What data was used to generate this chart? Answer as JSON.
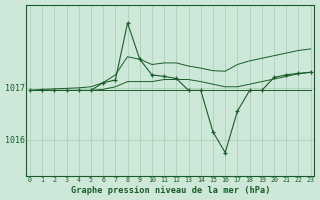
{
  "title": "Graphe pression niveau de la mer (hPa)",
  "background_color": "#cde8d8",
  "plot_bg_color": "#cde8d8",
  "line_color": "#1a5c28",
  "grid_color": "#aaccb8",
  "x_ticks": [
    0,
    1,
    2,
    3,
    4,
    5,
    6,
    7,
    8,
    9,
    10,
    11,
    12,
    13,
    14,
    15,
    16,
    17,
    18,
    19,
    20,
    21,
    22,
    23
  ],
  "y_ticks": [
    1016,
    1017
  ],
  "ylim": [
    1015.3,
    1018.6
  ],
  "xlim": [
    -0.3,
    23.3
  ],
  "series_main": [
    1016.95,
    1016.95,
    1016.95,
    1016.95,
    1016.95,
    1016.95,
    1017.1,
    1017.15,
    1018.25,
    1017.55,
    1017.25,
    1017.22,
    1017.18,
    1016.95,
    1016.95,
    1016.15,
    1015.75,
    1016.55,
    1016.95,
    1016.95,
    1017.2,
    1017.25,
    1017.28,
    1017.3
  ],
  "series_upper": [
    1016.95,
    1016.97,
    1016.98,
    1016.99,
    1017.0,
    1017.02,
    1017.1,
    1017.25,
    1017.6,
    1017.55,
    1017.45,
    1017.48,
    1017.48,
    1017.42,
    1017.38,
    1017.33,
    1017.32,
    1017.45,
    1017.52,
    1017.57,
    1017.62,
    1017.67,
    1017.72,
    1017.75
  ],
  "series_lower": [
    1016.95,
    1016.95,
    1016.95,
    1016.95,
    1016.95,
    1016.95,
    1016.97,
    1017.02,
    1017.12,
    1017.12,
    1017.12,
    1017.16,
    1017.16,
    1017.16,
    1017.12,
    1017.07,
    1017.02,
    1017.02,
    1017.07,
    1017.12,
    1017.17,
    1017.22,
    1017.27,
    1017.3
  ],
  "series_flat": [
    1016.95,
    1016.95,
    1016.95,
    1016.95,
    1016.95,
    1016.95,
    1016.95,
    1016.95,
    1016.95,
    1016.95,
    1016.95,
    1016.95,
    1016.95,
    1016.95,
    1016.95,
    1016.95,
    1016.95,
    1016.95,
    1016.95,
    1016.95,
    1016.95,
    1016.95,
    1016.95,
    1016.95
  ]
}
